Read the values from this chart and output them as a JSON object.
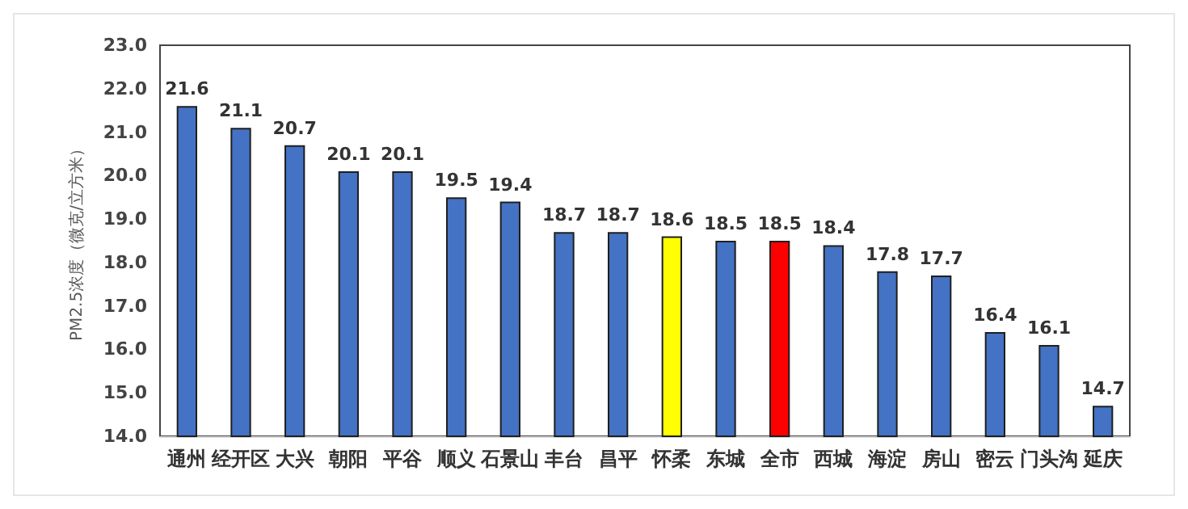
{
  "chart_data": {
    "type": "bar",
    "ylabel": "PM2.5浓度（微克/立方米）",
    "categories": [
      "通州",
      "经开区",
      "大兴",
      "朝阳",
      "平谷",
      "顺义",
      "石景山",
      "丰台",
      "昌平",
      "怀柔",
      "东城",
      "全市",
      "西城",
      "海淀",
      "房山",
      "密云",
      "门头沟",
      "延庆"
    ],
    "values": [
      21.6,
      21.1,
      20.7,
      20.1,
      20.1,
      19.5,
      19.4,
      18.7,
      18.7,
      18.6,
      18.5,
      18.5,
      18.4,
      17.8,
      17.7,
      16.4,
      16.1,
      14.7
    ],
    "colors": [
      "#4472c4",
      "#4472c4",
      "#4472c4",
      "#4472c4",
      "#4472c4",
      "#4472c4",
      "#4472c4",
      "#4472c4",
      "#4472c4",
      "#ffff00",
      "#4472c4",
      "#ff0000",
      "#4472c4",
      "#4472c4",
      "#4472c4",
      "#4472c4",
      "#4472c4",
      "#4472c4"
    ],
    "ylim": [
      14,
      23
    ],
    "yticks": [
      {
        "value": 14,
        "label": "14.0"
      },
      {
        "value": 15,
        "label": "15.0"
      },
      {
        "value": 16,
        "label": "16.0"
      },
      {
        "value": 17,
        "label": "17.0"
      },
      {
        "value": 18,
        "label": "18.0"
      },
      {
        "value": 19,
        "label": "19.0"
      },
      {
        "value": 20,
        "label": "20.0"
      },
      {
        "value": 21,
        "label": "21.0"
      },
      {
        "value": 22,
        "label": "22.0"
      },
      {
        "value": 23,
        "label": "23.0"
      }
    ],
    "data_labels": true
  }
}
